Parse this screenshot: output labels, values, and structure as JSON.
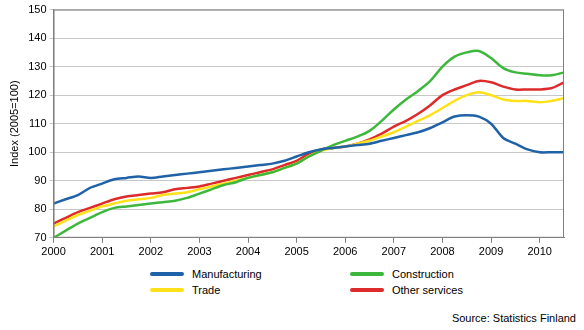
{
  "chart_data": {
    "type": "line",
    "y_label": "Index (2005=100)",
    "annotations": [
      "Source: Statistics Finland"
    ],
    "x": [
      2000,
      2000.25,
      2000.5,
      2000.75,
      2001,
      2001.25,
      2001.5,
      2001.75,
      2002,
      2002.25,
      2002.5,
      2002.75,
      2003,
      2003.25,
      2003.5,
      2003.75,
      2004,
      2004.25,
      2004.5,
      2004.75,
      2005,
      2005.25,
      2005.5,
      2005.75,
      2006,
      2006.25,
      2006.5,
      2006.75,
      2007,
      2007.25,
      2007.5,
      2007.75,
      2008,
      2008.25,
      2008.5,
      2008.75,
      2009,
      2009.25,
      2009.5,
      2009.75,
      2010,
      2010.25,
      2010.5
    ],
    "series": [
      {
        "name": "Manufacturing",
        "color": "#1f62a8",
        "values": [
          82,
          83.5,
          85,
          87.5,
          89,
          90.5,
          91,
          91.5,
          91,
          91.5,
          92,
          92.5,
          93,
          93.5,
          94,
          94.5,
          95,
          95.5,
          96,
          97,
          98.5,
          100,
          101,
          101.5,
          102,
          102.5,
          103,
          104,
          105,
          106,
          107,
          108.5,
          110.5,
          112.5,
          113,
          112.5,
          110,
          105,
          103,
          101,
          100,
          100,
          100
        ]
      },
      {
        "name": "Construction",
        "color": "#3db83d",
        "values": [
          70,
          72.5,
          75,
          77,
          79,
          80.5,
          81,
          81.5,
          82,
          82.5,
          83,
          84,
          85.5,
          87,
          88.5,
          89.5,
          91,
          92,
          93,
          94.5,
          96,
          98.5,
          100.5,
          102.5,
          104,
          105.5,
          107.5,
          111,
          115,
          118.5,
          121.5,
          125,
          130,
          133.5,
          135,
          135.5,
          133,
          129.5,
          128,
          127.5,
          127,
          127,
          128
        ]
      },
      {
        "name": "Trade",
        "color": "#ffe11a",
        "values": [
          74,
          76,
          78,
          79.5,
          81,
          82,
          83,
          83.5,
          84,
          85,
          85.5,
          86,
          87,
          88,
          89,
          90,
          91,
          92,
          93,
          94.5,
          96,
          98.5,
          100.5,
          101.5,
          102,
          103,
          104,
          105.5,
          107,
          109,
          111,
          113,
          115.5,
          118,
          120,
          121,
          120,
          118.5,
          118,
          118,
          117.5,
          118,
          119
        ]
      },
      {
        "name": "Other services",
        "color": "#dd2b2b",
        "values": [
          75,
          77,
          79,
          80.5,
          82,
          83.5,
          84.5,
          85,
          85.5,
          86,
          87,
          87.5,
          88,
          89,
          90,
          91,
          92,
          93,
          94,
          95.5,
          97,
          99.5,
          101,
          101.5,
          102,
          103,
          104.5,
          106.5,
          109,
          111,
          113.5,
          116.5,
          120,
          122,
          123.5,
          125,
          124.5,
          123,
          122,
          122,
          122,
          122.5,
          124.5
        ]
      }
    ],
    "xlim": [
      2000,
      2010.5
    ],
    "xticks": [
      2000,
      2001,
      2002,
      2003,
      2004,
      2005,
      2006,
      2007,
      2008,
      2009,
      2010
    ],
    "ylim": [
      70,
      150
    ],
    "yticks": [
      70,
      80,
      90,
      100,
      110,
      120,
      130,
      140,
      150
    ],
    "grid": true,
    "legend": "bottom"
  }
}
